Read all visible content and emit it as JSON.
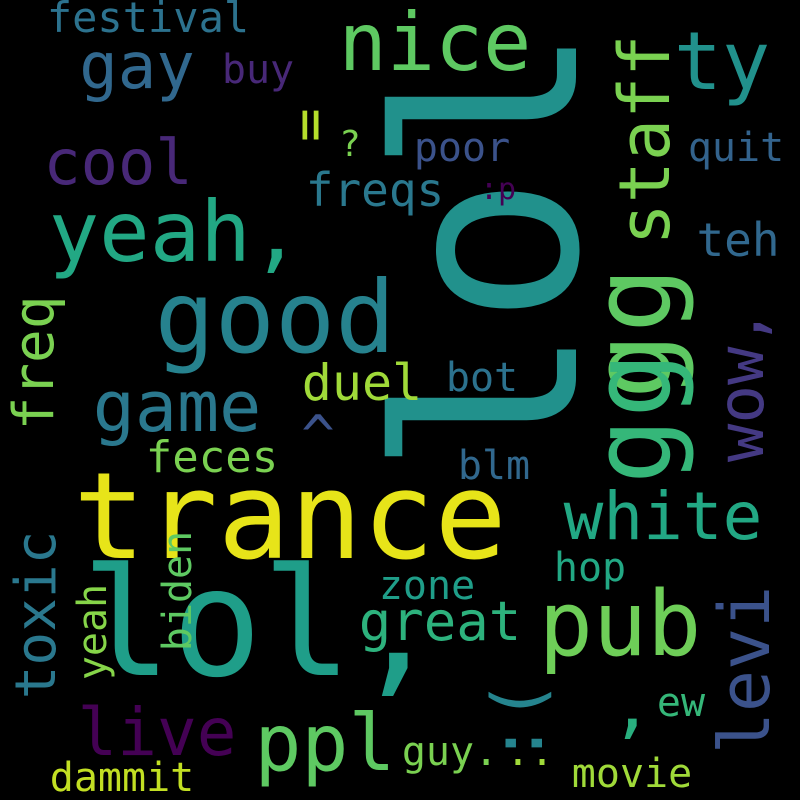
{
  "words": {
    "lol_big": {
      "text": "lol",
      "color": "#21918c"
    },
    "trance": {
      "text": "trance",
      "color": "#e7e419"
    },
    "lol_small": {
      "text": "lol,",
      "color": "#1f9e89"
    },
    "good": {
      "text": "good",
      "color": "#26828e"
    },
    "yeah_comma": {
      "text": "yeah,",
      "color": "#22a884"
    },
    "nice": {
      "text": "nice",
      "color": "#5ec962"
    },
    "gg_top": {
      "text": "gg",
      "color": "#5ec962"
    },
    "gg_bottom": {
      "text": "gg",
      "color": "#35b779"
    },
    "game": {
      "text": "game",
      "color": "#2a788e"
    },
    "pub": {
      "text": "pub",
      "color": "#6ece58"
    },
    "ppl": {
      "text": "ppl",
      "color": "#5ec962"
    },
    "gay": {
      "text": "gay",
      "color": "#31688e"
    },
    "ty": {
      "text": "ty",
      "color": "#21918c"
    },
    "staff": {
      "text": "staff",
      "color": "#7ad151"
    },
    "cool": {
      "text": "cool",
      "color": "#482878"
    },
    "white": {
      "text": "white",
      "color": "#22a884"
    },
    "levi": {
      "text": "levi",
      "color": "#3b528b"
    },
    "wow": {
      "text": "wow,",
      "color": "#443983"
    },
    "live": {
      "text": "live",
      "color": "#440154"
    },
    "great": {
      "text": "great",
      "color": "#2db27d"
    },
    "toxic": {
      "text": "toxic",
      "color": "#2a788e"
    },
    "freq": {
      "text": "freq",
      "color": "#7ad151"
    },
    "duel": {
      "text": "duel",
      "color": "#a0da39"
    },
    "freqs": {
      "text": "freqs",
      "color": "#2a788e"
    },
    "festival": {
      "text": "festival",
      "color": "#2c728e"
    },
    "feces": {
      "text": "feces",
      "color": "#7ad151"
    },
    "teh": {
      "text": "teh",
      "color": "#31688e"
    },
    "quit": {
      "text": "quit",
      "color": "#33638d"
    },
    "poor": {
      "text": "poor",
      "color": "#3b528b"
    },
    "buy": {
      "text": "buy",
      "color": "#482878"
    },
    "bot": {
      "text": "bot",
      "color": "#2c728e"
    },
    "blm": {
      "text": "blm",
      "color": "#31688e"
    },
    "hop": {
      "text": "hop",
      "color": "#22a884"
    },
    "zone": {
      "text": "zone",
      "color": "#1f9e89"
    },
    "biden": {
      "text": "biden",
      "color": "#5ec962"
    },
    "yeah_small": {
      "text": "yeah",
      "color": "#86d549"
    },
    "ew": {
      "text": "ew",
      "color": "#35b779"
    },
    "guy": {
      "text": "guy.",
      "color": "#7ad151"
    },
    "movie": {
      "text": "movie",
      "color": "#a0da39"
    },
    "dammit": {
      "text": "dammit",
      "color": "#c2df23"
    },
    "dots": {
      "text": "..",
      "color": "#a0da39"
    },
    "paren": {
      "text": ":(",
      "color": "#25848e"
    },
    "colon_p": {
      "text": ":p",
      "color": "#440154"
    },
    "question": {
      "text": "?",
      "color": "#7ad151"
    },
    "equals": {
      "text": "=",
      "color": "#b5de2b"
    },
    "caret": {
      "text": "^",
      "color": "#3b528b"
    },
    "comma_small": {
      "text": ",",
      "color": "#29af7f"
    }
  }
}
